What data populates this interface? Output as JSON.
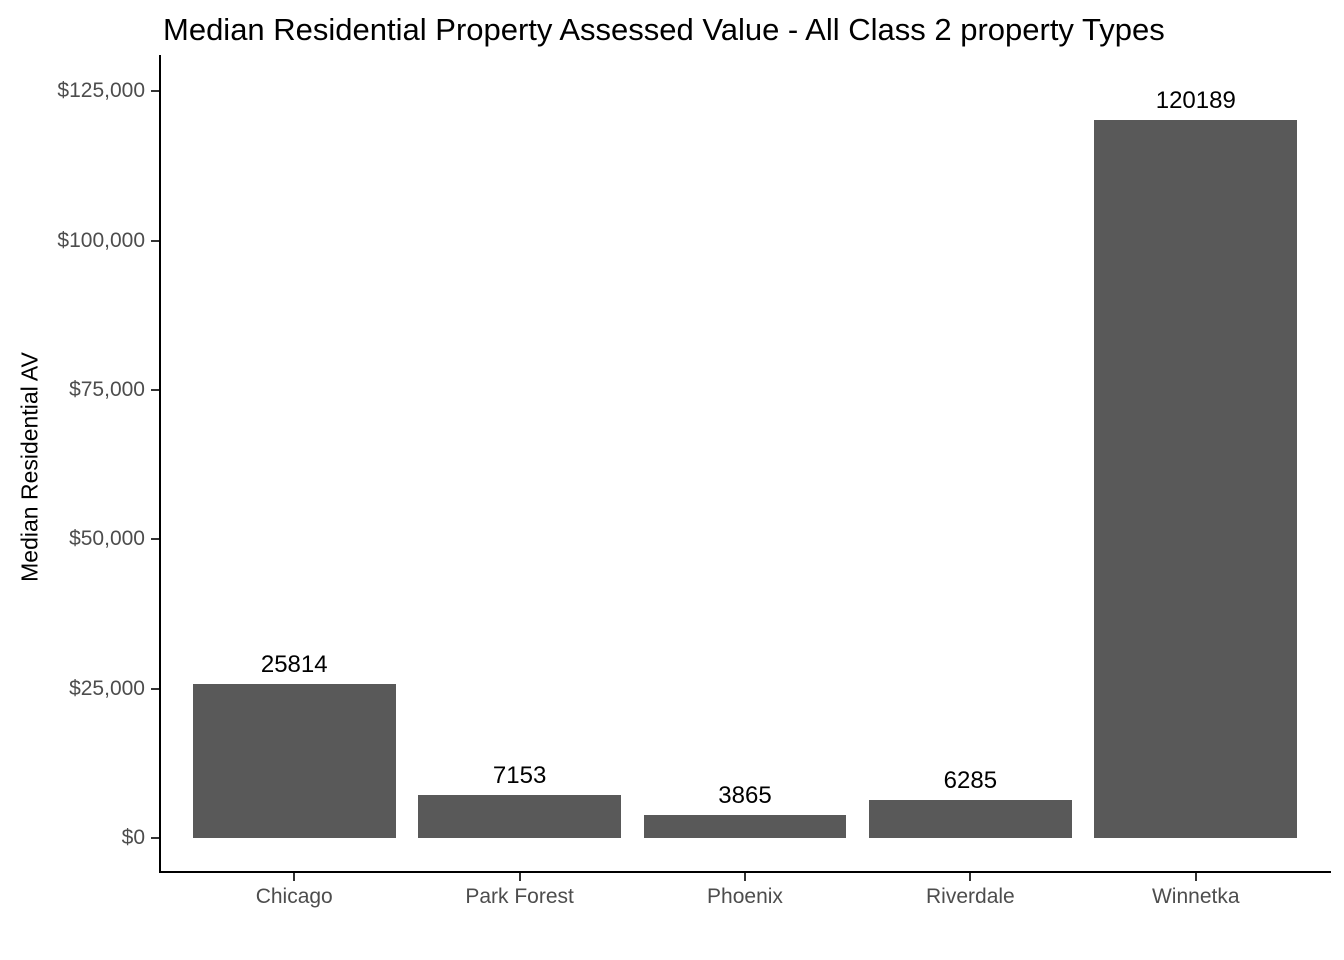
{
  "page": {
    "background_color": "#ffffff"
  },
  "chart_data": {
    "type": "bar",
    "title": "Median Residential Property Assessed Value - All Class 2 property Types",
    "xlabel": "",
    "ylabel": "Median Residential AV",
    "categories": [
      "Chicago",
      "Park Forest",
      "Phoenix",
      "Riverdale",
      "Winnetka"
    ],
    "values": [
      25814,
      7153,
      3865,
      6285,
      120189
    ],
    "bar_value_labels": [
      "25814",
      "7153",
      "3865",
      "6285",
      "120189"
    ],
    "y_ticks": [
      {
        "value": 0,
        "label": "$0"
      },
      {
        "value": 25000,
        "label": "$25,000"
      },
      {
        "value": 50000,
        "label": "$50,000"
      },
      {
        "value": 75000,
        "label": "$75,000"
      },
      {
        "value": 100000,
        "label": "$100,000"
      },
      {
        "value": 125000,
        "label": "$125,000"
      }
    ],
    "ylim": [
      -5900,
      131100
    ],
    "grid": false,
    "legend": false,
    "bar_color": "#595959",
    "axis_line_color": "#000000",
    "tick_mark_color": "#333333",
    "axis_text_color": "#4d4d4d",
    "title_color": "#000000",
    "bar_label_color": "#000000"
  }
}
